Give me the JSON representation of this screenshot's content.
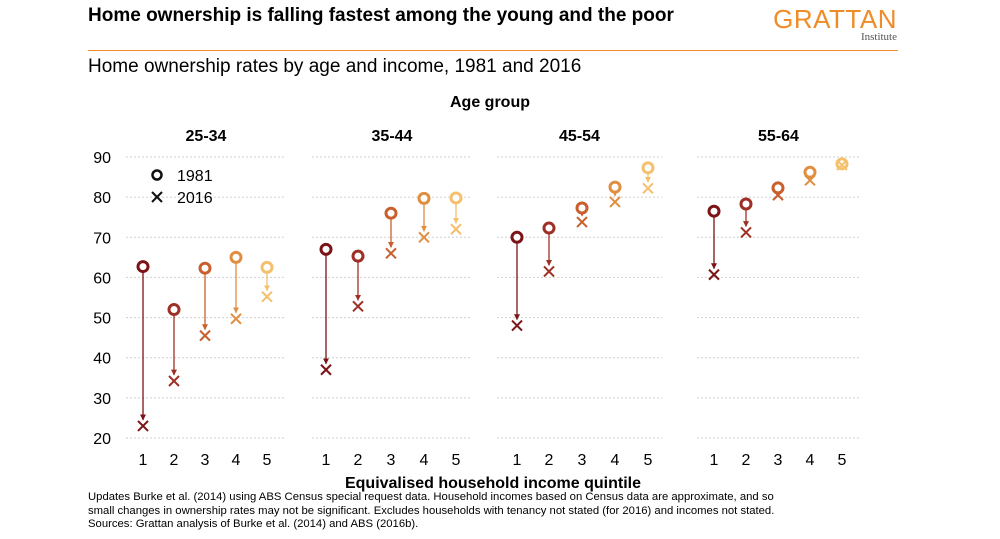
{
  "header": {
    "title": "Home ownership is falling fastest among the young and the poor",
    "subtitle": "Home ownership rates by age and income, 1981 and 2016",
    "logo_main": "GRATTAN",
    "logo_sub": "Institute"
  },
  "chart_data": {
    "type": "scatter",
    "facet_title": "Age group",
    "xlabel": "Equivalised household income quintile",
    "ylabel": "",
    "ylim": [
      20,
      90
    ],
    "yticks": [
      20,
      30,
      40,
      50,
      60,
      70,
      80,
      90
    ],
    "categories": [
      "1",
      "2",
      "3",
      "4",
      "5"
    ],
    "grid": "horizontal",
    "legend": {
      "placement": "top-left",
      "entries": [
        {
          "marker": "circle",
          "label": "1981"
        },
        {
          "marker": "cross",
          "label": "2016"
        }
      ]
    },
    "colors": [
      "#7b1416",
      "#9e2f25",
      "#c85f2d",
      "#e08e3f",
      "#f4c06c"
    ],
    "panels": [
      {
        "title": "25-34",
        "series": [
          {
            "name": "1981",
            "values": [
              62.7,
              52.0,
              62.3,
              65.0,
              62.5
            ]
          },
          {
            "name": "2016",
            "values": [
              23.0,
              34.2,
              45.5,
              49.7,
              55.2
            ]
          }
        ]
      },
      {
        "title": "35-44",
        "series": [
          {
            "name": "1981",
            "values": [
              67.0,
              65.3,
              76.0,
              79.7,
              79.8
            ]
          },
          {
            "name": "2016",
            "values": [
              37.0,
              52.8,
              66.0,
              70.0,
              72.0
            ]
          }
        ]
      },
      {
        "title": "45-54",
        "series": [
          {
            "name": "1981",
            "values": [
              70.0,
              72.3,
              77.3,
              82.5,
              87.3
            ]
          },
          {
            "name": "2016",
            "values": [
              48.0,
              61.5,
              73.8,
              78.8,
              82.2
            ]
          }
        ]
      },
      {
        "title": "55-64",
        "series": [
          {
            "name": "1981",
            "values": [
              76.5,
              78.3,
              82.3,
              86.2,
              88.3
            ]
          },
          {
            "name": "2016",
            "values": [
              60.7,
              71.2,
              80.5,
              84.2,
              88.0
            ]
          }
        ]
      }
    ]
  },
  "notes": [
    "Updates Burke et al. (2014) using ABS Census special request data. Household incomes based on Census data are approximate, and so",
    "small changes in ownership rates may not be significant. Excludes households with tenancy not stated (for 2016) and incomes not stated.",
    "Sources: Grattan analysis of Burke et al. (2014) and ABS (2016b)."
  ]
}
